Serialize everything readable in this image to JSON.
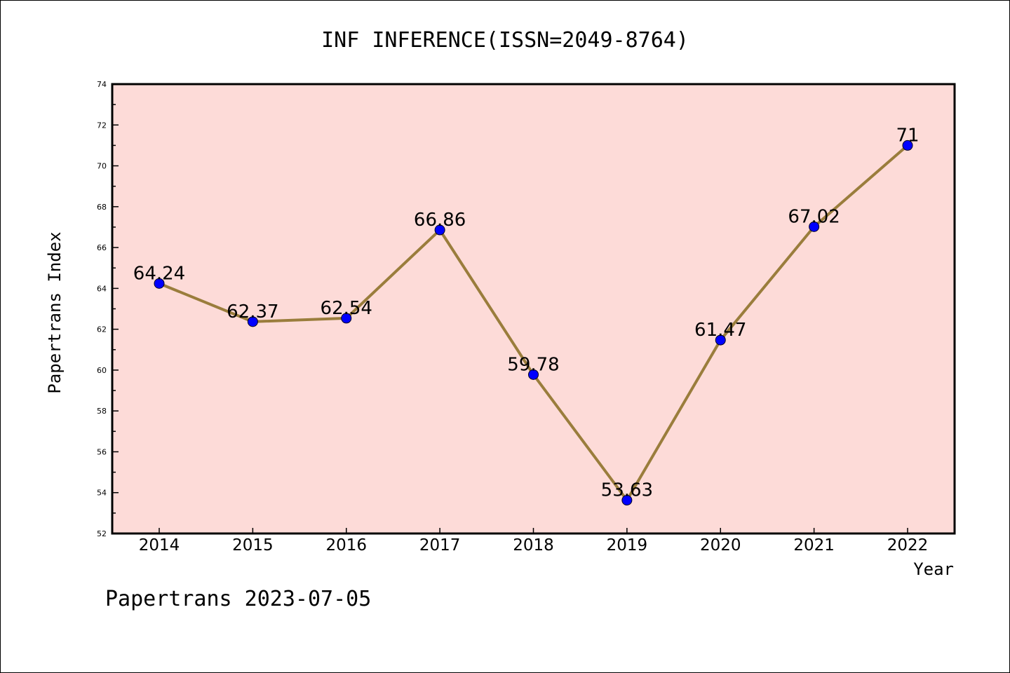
{
  "chart_data": {
    "type": "line",
    "title": "INF INFERENCE(ISSN=2049-8764)",
    "xlabel": "Year",
    "ylabel": "Papertrans Index",
    "footer": "Papertrans 2023-07-05",
    "categories": [
      "2014",
      "2015",
      "2016",
      "2017",
      "2018",
      "2019",
      "2020",
      "2021",
      "2022"
    ],
    "series": [
      {
        "values": [
          64.24,
          62.37,
          62.54,
          66.86,
          59.78,
          53.63,
          61.47,
          67.02,
          71
        ],
        "labels": [
          "64.24",
          "62.37",
          "62.54",
          "66.86",
          "59.78",
          "53.63",
          "61.47",
          "67.02",
          "71"
        ]
      }
    ],
    "ylim": [
      52,
      74
    ],
    "yticks": [
      "52",
      "54",
      "56",
      "58",
      "60",
      "62",
      "64",
      "66",
      "68",
      "70",
      "72",
      "74"
    ],
    "grid": false,
    "legend": "none",
    "colors": {
      "plot_background": "#fddbd8",
      "line": "#9a7d3c",
      "marker": "#0000ff"
    }
  }
}
